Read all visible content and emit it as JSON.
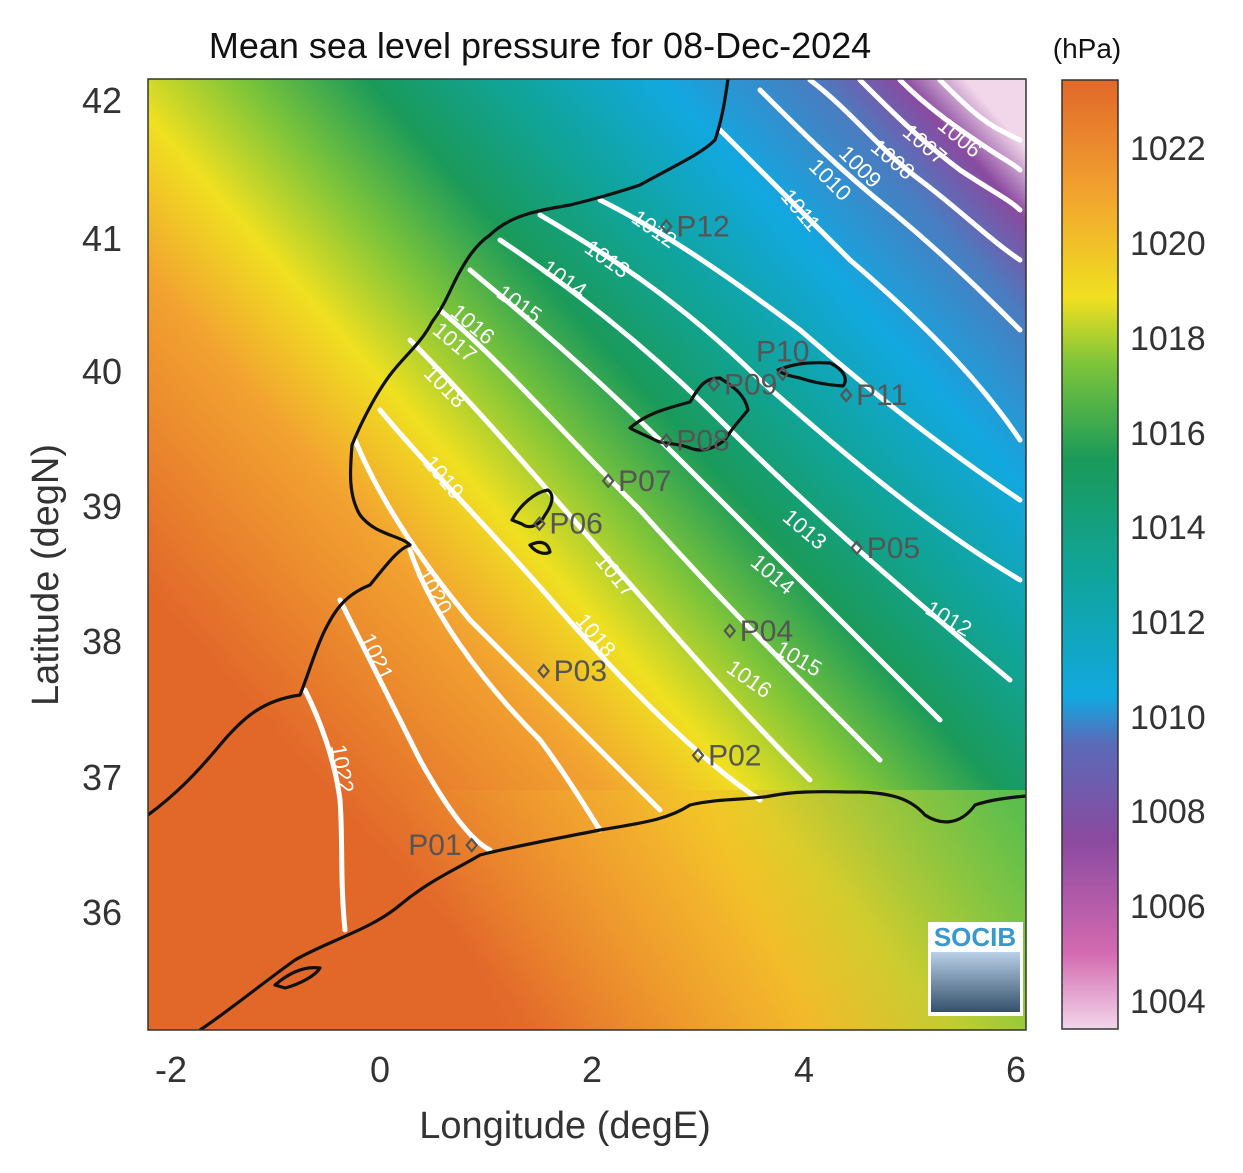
{
  "title": "Mean sea level pressure for 08-Dec-2024",
  "xlabel": "Longitude (degE)",
  "ylabel": "Latitude (degN)",
  "colorbar_unit": "(hPa)",
  "logo_text": "SOCIB",
  "x_ticks": [
    "-2",
    "0",
    "2",
    "4",
    "6"
  ],
  "y_ticks": [
    "42",
    "41",
    "40",
    "39",
    "38",
    "37",
    "36"
  ],
  "colorbar_ticks": [
    "1022",
    "1020",
    "1018",
    "1016",
    "1014",
    "1012",
    "1010",
    "1008",
    "1006",
    "1004"
  ],
  "colors": {
    "high": "#e2682a",
    "mid_high": "#f0e020",
    "mid": "#1a9a5a",
    "mid_low": "#12a8e0",
    "low": "#7a5aa8",
    "lowest": "#f2d6ea",
    "isobar": "#ffffff",
    "coast": "#111111",
    "station": "#555555"
  },
  "chart_data": {
    "type": "heatmap",
    "title": "Mean sea level pressure for 08-Dec-2024",
    "xlabel": "Longitude (degE)",
    "ylabel": "Latitude (degN)",
    "xlim": [
      -2.2,
      6.1
    ],
    "ylim": [
      35.1,
      42.2
    ],
    "colorbar_range": [
      1003.4,
      1023.4
    ],
    "colorbar_unit": "(hPa)",
    "isobar_levels": [
      "1006",
      "1007",
      "1008",
      "1009",
      "1010",
      "1011",
      "1012",
      "1013",
      "1014",
      "1015",
      "1016",
      "1017",
      "1018",
      "1019",
      "1020",
      "1021",
      "1022"
    ],
    "stations": [
      {
        "name": "P01",
        "lon": 0.86,
        "lat": 36.48
      },
      {
        "name": "P02",
        "lon": 3.0,
        "lat": 37.15
      },
      {
        "name": "P03",
        "lon": 1.54,
        "lat": 37.78
      },
      {
        "name": "P04",
        "lon": 3.3,
        "lat": 38.08
      },
      {
        "name": "P05",
        "lon": 4.5,
        "lat": 38.7
      },
      {
        "name": "P06",
        "lon": 1.5,
        "lat": 38.88
      },
      {
        "name": "P07",
        "lon": 2.15,
        "lat": 39.2
      },
      {
        "name": "P08",
        "lon": 2.7,
        "lat": 39.5
      },
      {
        "name": "P09",
        "lon": 3.15,
        "lat": 39.92
      },
      {
        "name": "P10",
        "lon": 3.8,
        "lat": 40.0
      },
      {
        "name": "P11",
        "lon": 4.4,
        "lat": 39.84
      },
      {
        "name": "P12",
        "lon": 2.7,
        "lat": 41.1
      }
    ]
  }
}
